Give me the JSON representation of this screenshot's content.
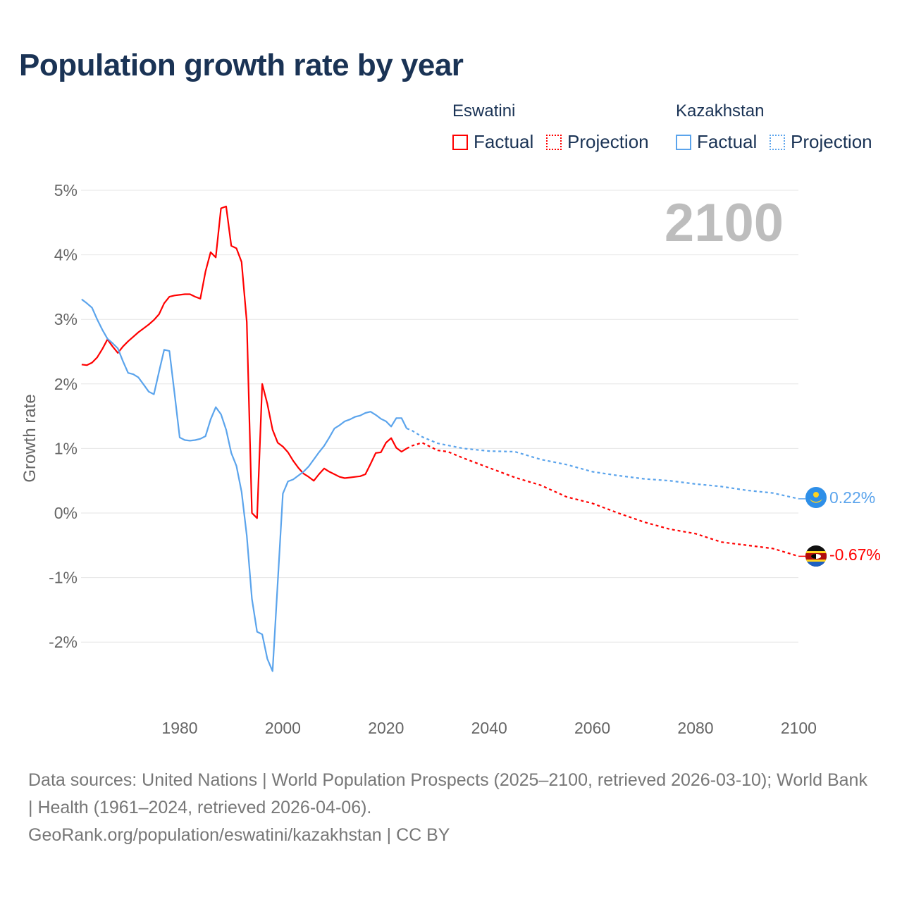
{
  "title": "Population growth rate by year",
  "legend": {
    "groups": [
      {
        "country": "Eswatini",
        "factual": "Factual",
        "projection": "Projection",
        "color": "#ff0000"
      },
      {
        "country": "Kazakhstan",
        "factual": "Factual",
        "projection": "Projection",
        "color": "#5ba4ec"
      }
    ]
  },
  "year_display": "2100",
  "end_labels": {
    "kazakhstan": "0.22%",
    "eswatini": "-0.67%"
  },
  "footer": {
    "sources": "Data sources: United Nations | World Population Prospects (2025–2100, retrieved 2026-03-10); World Bank | Health (1961–2024, retrieved 2026-04-06).",
    "credit": "GeoRank.org/population/eswatini/kazakhstan | CC BY"
  },
  "chart_data": {
    "type": "line",
    "title": "Population growth rate by year",
    "xlabel": "",
    "ylabel": "Growth rate",
    "xlim": [
      1961,
      2100
    ],
    "ylim": [
      -2.9,
      5
    ],
    "x_ticks": [
      "1980",
      "2000",
      "2020",
      "2040",
      "2060",
      "2080",
      "2100"
    ],
    "x_tick_values": [
      1980,
      2000,
      2020,
      2040,
      2060,
      2080,
      2100
    ],
    "y_ticks": [
      "5%",
      "4%",
      "3%",
      "2%",
      "1%",
      "0%",
      "-1%",
      "-2%"
    ],
    "y_tick_values": [
      5,
      4,
      3,
      2,
      1,
      0,
      -1,
      -2
    ],
    "grid": true,
    "legend_position": "top-right",
    "series": [
      {
        "name": "Eswatini",
        "color": "#ff0000",
        "factual_start_year": 1961,
        "factual": [
          2.3,
          2.29,
          2.33,
          2.41,
          2.54,
          2.69,
          2.58,
          2.48,
          2.58,
          2.66,
          2.73,
          2.8,
          2.86,
          2.92,
          2.99,
          3.08,
          3.25,
          3.35,
          3.37,
          3.38,
          3.39,
          3.39,
          3.35,
          3.32,
          3.74,
          4.04,
          3.96,
          4.72,
          4.75,
          4.14,
          4.1,
          3.89,
          2.96,
          0.0,
          -0.08,
          2.0,
          1.69,
          1.29,
          1.09,
          1.03,
          0.94,
          0.81,
          0.7,
          0.61,
          0.56,
          0.5,
          0.6,
          0.69,
          0.64,
          0.6,
          0.56,
          0.54,
          0.55,
          0.56,
          0.57,
          0.6,
          0.76,
          0.93,
          0.94,
          1.09,
          1.16,
          1.01,
          0.95,
          1.0
        ],
        "projection": [
          [
            2024,
            1.0
          ],
          [
            2025,
            1.04
          ],
          [
            2027,
            1.09
          ],
          [
            2030,
            0.97
          ],
          [
            2032,
            0.95
          ],
          [
            2035,
            0.85
          ],
          [
            2040,
            0.7
          ],
          [
            2045,
            0.55
          ],
          [
            2050,
            0.43
          ],
          [
            2055,
            0.25
          ],
          [
            2060,
            0.15
          ],
          [
            2065,
            0.0
          ],
          [
            2070,
            -0.14
          ],
          [
            2075,
            -0.25
          ],
          [
            2080,
            -0.32
          ],
          [
            2085,
            -0.45
          ],
          [
            2090,
            -0.5
          ],
          [
            2095,
            -0.55
          ],
          [
            2100,
            -0.67
          ]
        ]
      },
      {
        "name": "Kazakhstan",
        "color": "#5ba4ec",
        "factual_start_year": 1961,
        "factual": [
          3.31,
          3.25,
          3.18,
          3.0,
          2.84,
          2.7,
          2.63,
          2.55,
          2.35,
          2.17,
          2.15,
          2.1,
          1.99,
          1.88,
          1.84,
          2.19,
          2.53,
          2.51,
          1.85,
          1.17,
          1.13,
          1.12,
          1.13,
          1.15,
          1.19,
          1.45,
          1.64,
          1.53,
          1.29,
          0.93,
          0.73,
          0.33,
          -0.35,
          -1.33,
          -1.84,
          -1.88,
          -2.26,
          -2.45,
          -1.08,
          0.3,
          0.49,
          0.52,
          0.58,
          0.64,
          0.72,
          0.83,
          0.94,
          1.04,
          1.17,
          1.31,
          1.36,
          1.42,
          1.45,
          1.49,
          1.51,
          1.55,
          1.57,
          1.52,
          1.46,
          1.42,
          1.34,
          1.47,
          1.47,
          1.31
        ],
        "projection": [
          [
            2024,
            1.31
          ],
          [
            2025,
            1.28
          ],
          [
            2027,
            1.18
          ],
          [
            2030,
            1.08
          ],
          [
            2035,
            1.0
          ],
          [
            2040,
            0.96
          ],
          [
            2045,
            0.95
          ],
          [
            2050,
            0.83
          ],
          [
            2055,
            0.75
          ],
          [
            2060,
            0.64
          ],
          [
            2065,
            0.58
          ],
          [
            2070,
            0.53
          ],
          [
            2075,
            0.5
          ],
          [
            2080,
            0.45
          ],
          [
            2085,
            0.41
          ],
          [
            2090,
            0.35
          ],
          [
            2095,
            0.31
          ],
          [
            2100,
            0.22
          ]
        ]
      }
    ]
  }
}
